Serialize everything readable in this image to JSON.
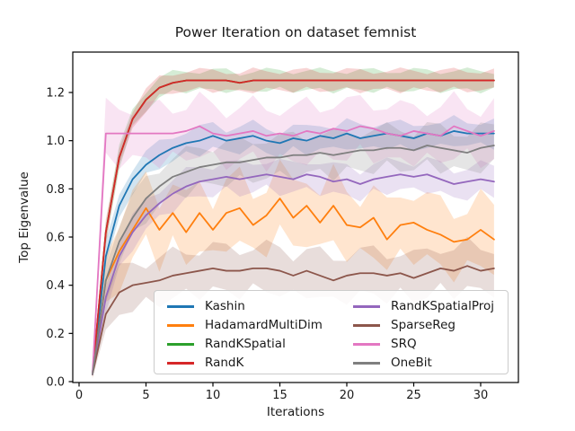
{
  "figure": {
    "title": "Power Iteration on dataset femnist",
    "xlabel": "Iterations",
    "ylabel": "Top Eigenvalue"
  },
  "chart_data": {
    "type": "line",
    "title": "Power Iteration on dataset femnist",
    "xlabel": "Iterations",
    "ylabel": "Top Eigenvalue",
    "x_ticks": [
      0,
      5,
      10,
      15,
      20,
      25,
      30
    ],
    "y_ticks": [
      "0.0",
      "0.2",
      "0.4",
      "0.6",
      "0.8",
      "1.0",
      "1.2"
    ],
    "xlim": [
      -0.5,
      32.8
    ],
    "ylim": [
      0.0,
      1.37
    ],
    "grid": false,
    "legend_position": "lower center inside axes, 2 columns",
    "band_alpha": 0.2,
    "x": [
      1,
      2,
      3,
      4,
      5,
      6,
      7,
      8,
      9,
      10,
      11,
      12,
      13,
      14,
      15,
      16,
      17,
      18,
      19,
      20,
      21,
      22,
      23,
      24,
      25,
      26,
      27,
      28,
      29,
      30,
      31
    ],
    "series": [
      {
        "name": "Kashin",
        "color": "#1f77b4",
        "spread": 0.05,
        "values": [
          0.03,
          0.52,
          0.73,
          0.84,
          0.9,
          0.94,
          0.97,
          0.99,
          1.0,
          1.02,
          1.0,
          1.01,
          1.02,
          1.0,
          0.99,
          1.01,
          1.0,
          1.02,
          1.01,
          1.03,
          1.01,
          1.02,
          1.03,
          1.02,
          1.01,
          1.03,
          1.02,
          1.04,
          1.03,
          1.03,
          1.03
        ]
      },
      {
        "name": "HadamardMultiDim",
        "color": "#ff7f0e",
        "spread": 0.13,
        "values": [
          0.03,
          0.42,
          0.54,
          0.63,
          0.72,
          0.63,
          0.7,
          0.62,
          0.7,
          0.63,
          0.7,
          0.72,
          0.65,
          0.69,
          0.76,
          0.68,
          0.73,
          0.66,
          0.73,
          0.65,
          0.64,
          0.68,
          0.59,
          0.65,
          0.66,
          0.63,
          0.61,
          0.58,
          0.59,
          0.63,
          0.59
        ]
      },
      {
        "name": "RandKSpatial",
        "color": "#2ca02c",
        "spread": 0.04,
        "values": [
          0.03,
          0.62,
          0.93,
          1.09,
          1.17,
          1.22,
          1.24,
          1.25,
          1.25,
          1.25,
          1.25,
          1.24,
          1.25,
          1.25,
          1.25,
          1.25,
          1.25,
          1.25,
          1.25,
          1.25,
          1.25,
          1.25,
          1.25,
          1.25,
          1.25,
          1.25,
          1.25,
          1.25,
          1.25,
          1.25,
          1.25
        ]
      },
      {
        "name": "RandK",
        "color": "#d62728",
        "spread": 0.04,
        "values": [
          0.03,
          0.62,
          0.93,
          1.09,
          1.17,
          1.22,
          1.24,
          1.25,
          1.25,
          1.25,
          1.25,
          1.24,
          1.25,
          1.25,
          1.25,
          1.25,
          1.25,
          1.25,
          1.25,
          1.25,
          1.25,
          1.25,
          1.25,
          1.25,
          1.25,
          1.25,
          1.25,
          1.25,
          1.25,
          1.25,
          1.25
        ]
      },
      {
        "name": "RandKSpatialProj",
        "color": "#9467bd",
        "spread": 0.06,
        "values": [
          0.03,
          0.35,
          0.52,
          0.62,
          0.69,
          0.74,
          0.78,
          0.81,
          0.83,
          0.84,
          0.85,
          0.84,
          0.85,
          0.86,
          0.85,
          0.84,
          0.86,
          0.85,
          0.83,
          0.84,
          0.82,
          0.84,
          0.85,
          0.86,
          0.85,
          0.86,
          0.84,
          0.82,
          0.83,
          0.84,
          0.83
        ]
      },
      {
        "name": "SparseReg",
        "color": "#8c564b",
        "spread": 0.09,
        "values": [
          0.03,
          0.28,
          0.37,
          0.4,
          0.41,
          0.42,
          0.44,
          0.45,
          0.46,
          0.47,
          0.46,
          0.46,
          0.47,
          0.47,
          0.46,
          0.44,
          0.46,
          0.44,
          0.42,
          0.44,
          0.45,
          0.45,
          0.44,
          0.45,
          0.43,
          0.45,
          0.47,
          0.46,
          0.48,
          0.46,
          0.47
        ]
      },
      {
        "name": "SRQ",
        "color": "#e377c2",
        "spread": 0.11,
        "values": [
          0.03,
          1.03,
          1.03,
          1.03,
          1.03,
          1.03,
          1.03,
          1.04,
          1.06,
          1.03,
          1.02,
          1.03,
          1.04,
          1.02,
          1.03,
          1.02,
          1.04,
          1.03,
          1.05,
          1.04,
          1.06,
          1.05,
          1.03,
          1.02,
          1.04,
          1.03,
          1.02,
          1.06,
          1.04,
          1.02,
          1.04
        ]
      },
      {
        "name": "OneBit",
        "color": "#7f7f7f",
        "spread": 0.08,
        "values": [
          0.03,
          0.42,
          0.58,
          0.68,
          0.76,
          0.81,
          0.85,
          0.87,
          0.89,
          0.9,
          0.91,
          0.91,
          0.92,
          0.93,
          0.93,
          0.94,
          0.94,
          0.95,
          0.94,
          0.95,
          0.96,
          0.96,
          0.97,
          0.97,
          0.96,
          0.98,
          0.97,
          0.96,
          0.95,
          0.97,
          0.98
        ]
      }
    ]
  }
}
